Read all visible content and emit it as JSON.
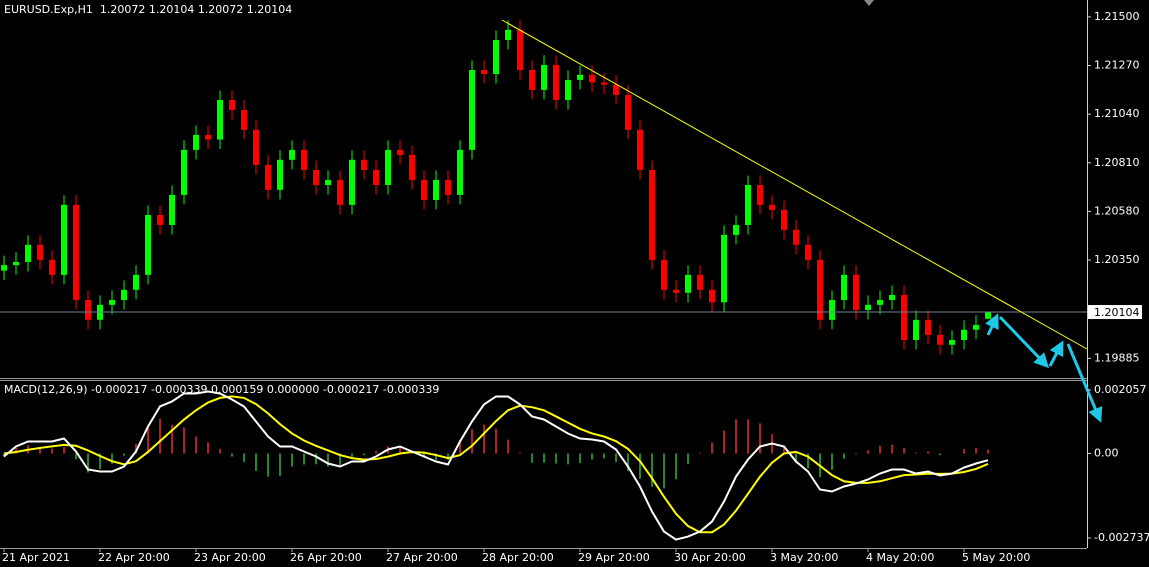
{
  "chart_data": [
    {
      "type": "candlestick",
      "title": "EURUSD.Exp,H1  1.20072 1.20104 1.20072 1.20104",
      "categories": [
        "21 Apr 2021",
        null,
        null,
        null,
        null,
        null,
        null,
        null,
        "22 Apr 20:00",
        null,
        null,
        null,
        null,
        null,
        null,
        null,
        "23 Apr 20:00",
        null,
        null,
        null,
        null,
        null,
        null,
        null,
        "26 Apr 20:00",
        null,
        null,
        null,
        null,
        null,
        null,
        null,
        "27 Apr 20:00",
        null,
        null,
        null,
        null,
        null,
        null,
        null,
        "28 Apr 20:00",
        null,
        null,
        null,
        null,
        null,
        null,
        null,
        "29 Apr 20:00",
        null,
        null,
        null,
        null,
        null,
        null,
        null,
        "30 Apr 20:00",
        null,
        null,
        null,
        null,
        null,
        null,
        null,
        "3 May 20:00",
        null,
        null,
        null,
        null,
        null,
        null,
        null,
        "4 May 20:00",
        null,
        null,
        null,
        null,
        null,
        null,
        null,
        "5 May 20:00",
        null,
        null
      ],
      "open": [
        1.203,
        1.20326,
        1.20341,
        1.20422,
        1.20351,
        1.2028,
        1.20611,
        1.20161,
        1.20067,
        1.20138,
        1.20161,
        1.20209,
        1.2028,
        1.20563,
        1.20516,
        1.20658,
        1.20871,
        1.20942,
        1.2092,
        1.21107,
        1.2106,
        1.20966,
        1.208,
        1.20682,
        1.20824,
        1.20871,
        1.20776,
        1.20705,
        1.20729,
        1.20611,
        1.20824,
        1.20776,
        1.20705,
        1.20871,
        1.20847,
        1.20729,
        1.20634,
        1.20729,
        1.20658,
        1.20871,
        1.21249,
        1.2123,
        1.21391,
        1.21439,
        1.21249,
        1.21155,
        1.21273,
        1.21107,
        1.21202,
        1.21226,
        1.2119,
        1.2118,
        1.21131,
        1.20966,
        1.20776,
        1.20351,
        1.20209,
        1.20195,
        1.2028,
        1.20209,
        1.2015,
        1.20469,
        1.20516,
        1.20705,
        1.20611,
        1.20587,
        1.20493,
        1.20422,
        1.20351,
        1.20067,
        1.20161,
        1.2028,
        1.20114,
        1.20138,
        1.20161,
        1.20185,
        1.19972,
        1.20067,
        1.19996,
        1.19949,
        1.19972,
        1.2002,
        1.20072
      ],
      "high": [
        1.20371,
        1.20386,
        1.20467,
        1.20467,
        1.20396,
        1.20656,
        1.20656,
        1.20206,
        1.20183,
        1.20206,
        1.20254,
        1.20325,
        1.20608,
        1.20608,
        1.20703,
        1.20916,
        1.20987,
        1.20987,
        1.21152,
        1.21152,
        1.21105,
        1.21011,
        1.20845,
        1.20869,
        1.20916,
        1.20916,
        1.20821,
        1.20774,
        1.20774,
        1.20869,
        1.20869,
        1.20821,
        1.20916,
        1.20916,
        1.20892,
        1.20774,
        1.20774,
        1.20774,
        1.20916,
        1.21294,
        1.21294,
        1.21436,
        1.21484,
        1.21484,
        1.21294,
        1.21318,
        1.21318,
        1.21247,
        1.21271,
        1.21271,
        1.21235,
        1.21225,
        1.21176,
        1.21011,
        1.20821,
        1.20396,
        1.20254,
        1.20325,
        1.20325,
        1.20254,
        1.20514,
        1.20561,
        1.2075,
        1.2075,
        1.20656,
        1.20632,
        1.20538,
        1.20467,
        1.20396,
        1.20206,
        1.20325,
        1.20325,
        1.20183,
        1.20206,
        1.2023,
        1.2023,
        1.20112,
        1.20112,
        1.20041,
        1.20017,
        1.20065,
        1.20088,
        1.20104
      ],
      "low": [
        1.20255,
        1.20281,
        1.20296,
        1.20306,
        1.20235,
        1.20235,
        1.20116,
        1.20022,
        1.20022,
        1.20093,
        1.20116,
        1.20164,
        1.20235,
        1.20471,
        1.20471,
        1.20613,
        1.20826,
        1.20875,
        1.20875,
        1.21015,
        1.20921,
        1.20755,
        1.20637,
        1.20637,
        1.20779,
        1.20731,
        1.2066,
        1.2066,
        1.20566,
        1.20566,
        1.20731,
        1.2066,
        1.2066,
        1.20802,
        1.20684,
        1.20589,
        1.20589,
        1.20613,
        1.20613,
        1.20826,
        1.21185,
        1.21185,
        1.21346,
        1.21204,
        1.2111,
        1.2111,
        1.21062,
        1.21062,
        1.21157,
        1.21145,
        1.21135,
        1.21086,
        1.20921,
        1.20731,
        1.20306,
        1.20164,
        1.2015,
        1.2015,
        1.20164,
        1.20105,
        1.20105,
        1.20424,
        1.20471,
        1.20566,
        1.20542,
        1.20448,
        1.20377,
        1.20306,
        1.20022,
        1.20022,
        1.20116,
        1.20069,
        1.20069,
        1.20093,
        1.20116,
        1.19927,
        1.19927,
        1.19951,
        1.19904,
        1.19904,
        1.19927,
        1.19975,
        1.20072
      ],
      "close": [
        1.20326,
        1.20341,
        1.20422,
        1.20351,
        1.2028,
        1.20611,
        1.20161,
        1.20067,
        1.20138,
        1.20161,
        1.20209,
        1.2028,
        1.20563,
        1.20516,
        1.20658,
        1.20871,
        1.20942,
        1.2092,
        1.21107,
        1.2106,
        1.20966,
        1.208,
        1.20682,
        1.20824,
        1.20871,
        1.20776,
        1.20705,
        1.20729,
        1.20611,
        1.20824,
        1.20776,
        1.20705,
        1.20871,
        1.20847,
        1.20729,
        1.20634,
        1.20729,
        1.20658,
        1.20871,
        1.21249,
        1.2123,
        1.21391,
        1.21439,
        1.21249,
        1.21155,
        1.21273,
        1.21107,
        1.21202,
        1.21226,
        1.2119,
        1.2118,
        1.21131,
        1.20966,
        1.20776,
        1.20351,
        1.20209,
        1.20195,
        1.2028,
        1.20209,
        1.2015,
        1.20469,
        1.20516,
        1.20705,
        1.20611,
        1.20587,
        1.20493,
        1.20422,
        1.20351,
        1.20067,
        1.20161,
        1.2028,
        1.20114,
        1.20138,
        1.20161,
        1.20185,
        1.19972,
        1.20067,
        1.19996,
        1.19949,
        1.19972,
        1.2002,
        1.20043,
        1.20104
      ],
      "up_color": "#00ff00",
      "down_color": "#ff0000",
      "ylim": [
        1.19792,
        1.2158
      ],
      "yticks": [
        {
          "value": 1.215,
          "label": "1.21500"
        },
        {
          "value": 1.2127,
          "label": "1.21270"
        },
        {
          "value": 1.2104,
          "label": "1.21040"
        },
        {
          "value": 1.2081,
          "label": "1.20810"
        },
        {
          "value": 1.2058,
          "label": "1.20580"
        },
        {
          "value": 1.2035,
          "label": "1.20350"
        },
        1.19885
      ]
    },
    {
      "type": "macd",
      "title": "MACD(12,26,9) -0.000217 -0.000339 0.000159 0.000000 -0.000217 -0.000339",
      "macd": {
        "color": "#ffffff",
        "values": [
          -9.7e-05,
          0.000227,
          0.000389,
          0.000389,
          0.000389,
          0.000486,
          6.5e-05,
          -0.000518,
          -0.000583,
          -0.000583,
          -0.000421,
          6.5e-05,
          0.000875,
          0.001523,
          0.001685,
          0.001944,
          0.001944,
          0.002009,
          0.001944,
          0.00175,
          0.001523,
          0.001037,
          0.000551,
          0.000227,
          0.000227,
          6.5e-05,
          -9.7e-05,
          -0.000324,
          -0.000421,
          -0.000259,
          -0.000259,
          -9.7e-05,
          0.00013,
          0.000227,
          6.5e-05,
          -9.7e-05,
          -0.000259,
          -0.000356,
          0.000389,
          0.001037,
          0.001588,
          0.001847,
          0.001847,
          0.001588,
          0.001199,
          0.001102,
          0.000875,
          0.000648,
          0.000486,
          0.000454,
          0.000389,
          0.00013,
          -0.000421,
          -0.001069,
          -0.001879,
          -0.002527,
          -0.002786,
          -0.002689,
          -0.002527,
          -0.002203,
          -0.001555,
          -0.000745,
          -0.000194,
          0.000227,
          0.000324,
          0.000227,
          -0.000259,
          -0.000583,
          -0.001166,
          -0.001231,
          -0.001069,
          -0.000972,
          -0.000842,
          -0.000648,
          -0.000518,
          -0.000518,
          -0.000648,
          -0.000583,
          -0.000713,
          -0.000648,
          -0.000454,
          -0.000324,
          -0.000217
        ]
      },
      "signal": {
        "color": "#ffff00",
        "values": [
          0,
          5e-05,
          0.00012,
          0.00018,
          0.00023,
          0.00028,
          0.00025,
          0.0001,
          -8e-05,
          -0.00025,
          -0.00035,
          -0.00025,
          5e-05,
          0.0004,
          0.00075,
          0.0011,
          0.0014,
          0.00165,
          0.0018,
          0.00185,
          0.0018,
          0.0016,
          0.0013,
          0.00095,
          0.00065,
          0.00042,
          0.00025,
          0.0001,
          -5e-05,
          -0.00015,
          -0.0002,
          -0.00018,
          -0.0001,
          0,
          5e-05,
          3e-05,
          -5e-05,
          -0.00015,
          -5e-05,
          0.00025,
          0.00065,
          0.00105,
          0.0014,
          0.00155,
          0.0015,
          0.0014,
          0.0012,
          0.001,
          0.0008,
          0.00065,
          0.00055,
          0.0004,
          0.00015,
          -0.00025,
          -0.0008,
          -0.0014,
          -0.00195,
          -0.00235,
          -0.00255,
          -0.00255,
          -0.0023,
          -0.00185,
          -0.0013,
          -0.00075,
          -0.0003,
          0,
          5e-05,
          -0.0001,
          -0.0004,
          -0.0007,
          -0.0009,
          -0.00095,
          -0.00095,
          -0.0009,
          -0.0008,
          -0.0007,
          -0.00068,
          -0.00065,
          -0.00066,
          -0.00065,
          -0.0006,
          -0.0005,
          -0.000339
        ]
      },
      "histogram": {
        "up_color": "#b22222",
        "down_color": "#228b22",
        "values": [
          -9.7e-05,
          0.000177,
          0.000269,
          0.000209,
          0.000159,
          0.000206,
          -0.000185,
          -0.000618,
          -0.000503,
          -0.000333,
          -7.1e-05,
          0.000315,
          0.000825,
          0.001123,
          0.000935,
          0.000844,
          0.000544,
          0.000359,
          0.000144,
          -0.0001,
          -0.000277,
          -0.000563,
          -0.000749,
          -0.000723,
          -0.000423,
          -0.000355,
          -0.000347,
          -0.000424,
          -0.000371,
          -0.000109,
          -5.9e-05,
          8.3e-05,
          0.00023,
          0.000227,
          1.5e-05,
          -0.000127,
          -0.000209,
          -0.000206,
          0.000439,
          0.000787,
          0.000938,
          0.000797,
          0.000447,
          3.8e-05,
          -0.000301,
          -0.000298,
          -0.000325,
          -0.000352,
          -0.000314,
          -0.000196,
          -0.000161,
          -0.00027,
          -0.000571,
          -0.000819,
          -0.001079,
          -0.001127,
          -0.000836,
          -0.000339,
          2.3e-05,
          0.000347,
          0.000745,
          0.001105,
          0.001106,
          0.000977,
          0.000624,
          0.000227,
          -0.000309,
          -0.000483,
          -0.000766,
          -0.000531,
          -0.000169,
          -2.2e-05,
          0.000108,
          0.000252,
          0.000282,
          0.000182,
          3.2e-05,
          6.7e-05,
          -5.3e-05,
          2e-06,
          0.000146,
          0.000176,
          0.000122
        ]
      },
      "ylim": [
        -0.00306,
        0.00238
      ],
      "yticks": [
        0.002057,
        {
          "value": 0,
          "label": "0.00"
        },
        -0.002737
      ]
    }
  ]
}
